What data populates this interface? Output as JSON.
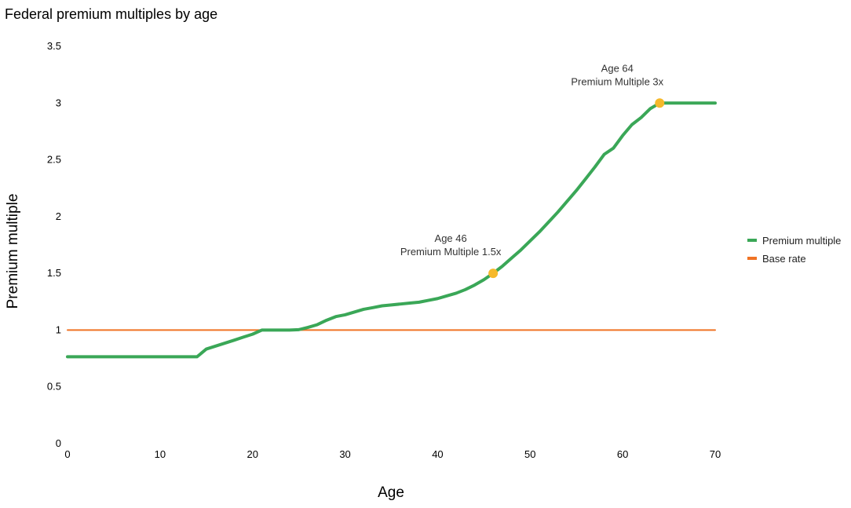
{
  "chart_data": {
    "type": "line",
    "title": "Federal premium multiples by age",
    "xlabel": "Age",
    "ylabel": "Premium multiple",
    "xlim": [
      0,
      70
    ],
    "ylim": [
      0,
      3.5
    ],
    "x_ticks": [
      "0",
      "10",
      "20",
      "30",
      "40",
      "50",
      "60",
      "70"
    ],
    "y_ticks": [
      "0",
      "0.5",
      "1",
      "1.5",
      "2",
      "2.5",
      "3",
      "3.5"
    ],
    "grid": false,
    "legend_position": "right",
    "series": [
      {
        "name": "Premium multiple",
        "color": "#3aa757",
        "x": [
          0,
          14,
          15,
          16,
          17,
          18,
          19,
          20,
          21,
          22,
          23,
          24,
          25,
          26,
          27,
          28,
          29,
          30,
          31,
          32,
          33,
          34,
          35,
          36,
          37,
          38,
          39,
          40,
          41,
          42,
          43,
          44,
          45,
          46,
          47,
          48,
          49,
          50,
          51,
          52,
          53,
          54,
          55,
          56,
          57,
          58,
          59,
          60,
          61,
          62,
          63,
          64,
          70
        ],
        "values": [
          0.765,
          0.765,
          0.833,
          0.859,
          0.885,
          0.911,
          0.938,
          0.964,
          1.0,
          1.0,
          1.0,
          1.0,
          1.004,
          1.024,
          1.048,
          1.087,
          1.119,
          1.135,
          1.159,
          1.183,
          1.198,
          1.214,
          1.222,
          1.23,
          1.238,
          1.246,
          1.262,
          1.278,
          1.302,
          1.325,
          1.357,
          1.397,
          1.444,
          1.5,
          1.563,
          1.635,
          1.706,
          1.786,
          1.865,
          1.952,
          2.04,
          2.135,
          2.23,
          2.333,
          2.437,
          2.548,
          2.603,
          2.714,
          2.81,
          2.873,
          2.952,
          3.0,
          3.0
        ]
      },
      {
        "name": "Base rate",
        "color": "#f07324",
        "x": [
          0,
          70
        ],
        "values": [
          1,
          1
        ]
      }
    ],
    "annotations": [
      {
        "x": 46,
        "y": 1.5,
        "line1": "Age 46",
        "line2": "Premium Multiple 1.5x",
        "marker_color": "#f6b92b"
      },
      {
        "x": 64,
        "y": 3,
        "line1": "Age 64",
        "line2": "Premium Multiple 3x",
        "marker_color": "#f6b92b"
      }
    ]
  }
}
